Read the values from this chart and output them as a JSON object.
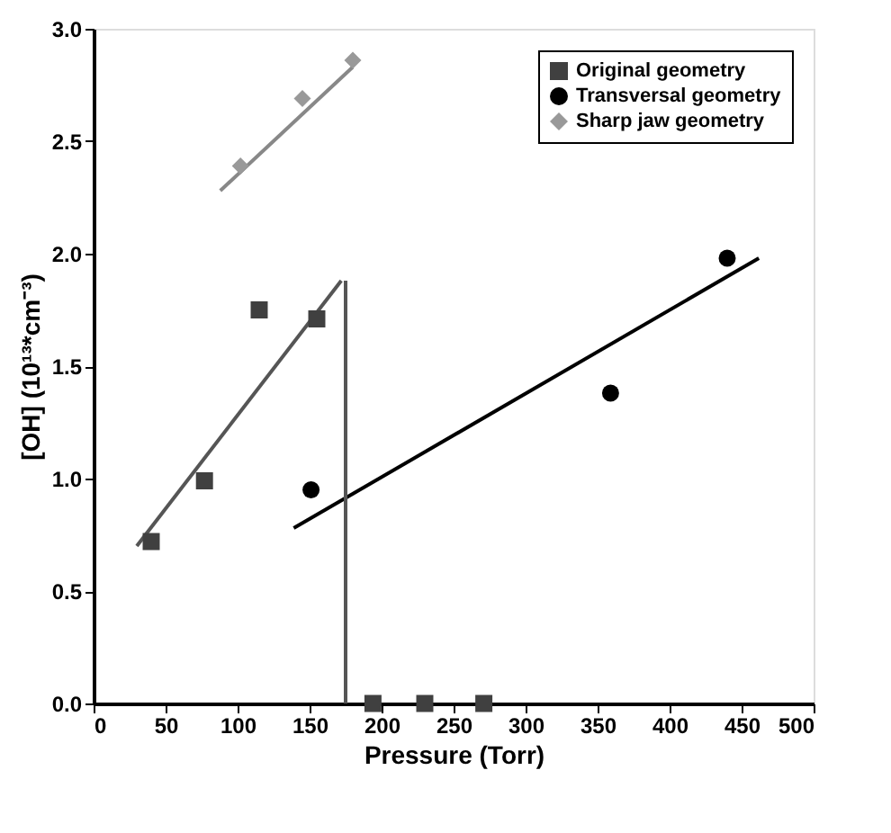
{
  "chart_data": {
    "type": "scatter",
    "xlabel": "Pressure (Torr)",
    "ylabel": "[OH] (10¹³*cm⁻³)",
    "xlim": [
      0,
      500
    ],
    "xticks": [
      0,
      50,
      100,
      150,
      200,
      250,
      300,
      350,
      400,
      450,
      500
    ],
    "ylim": [
      0,
      3
    ],
    "yticks": [
      {
        "value": 0,
        "label": "0.0"
      },
      0.5,
      {
        "value": 1,
        "label": "1.0"
      },
      1.5,
      {
        "value": 2,
        "label": "2.0"
      },
      2.5,
      {
        "value": 3,
        "label": "3.0"
      }
    ],
    "grid": false,
    "legend": "top right",
    "series": [
      {
        "name": "Original geometry",
        "marker": "square",
        "color": "#404040",
        "x": [
          40,
          77,
          115,
          155,
          194,
          230,
          271
        ],
        "values": [
          0.72,
          0.99,
          1.75,
          1.71,
          0,
          0,
          0
        ]
      },
      {
        "name": "Transversal geometry",
        "marker": "circle",
        "color": "#000000",
        "x": [
          151,
          359,
          440
        ],
        "values": [
          0.95,
          1.38,
          1.98
        ]
      },
      {
        "name": "Sharp jaw geometry",
        "marker": "diamond",
        "color": "#999999",
        "x": [
          102,
          145,
          180
        ],
        "values": [
          2.39,
          2.69,
          2.86
        ]
      },
      {
        "type": "line",
        "color": "#555555",
        "x": [
          30,
          172
        ],
        "values": [
          0.7,
          1.88
        ]
      },
      {
        "type": "line",
        "color": "#000000",
        "x": [
          139,
          462
        ],
        "values": [
          0.78,
          1.98
        ]
      },
      {
        "type": "line",
        "color": "#888888",
        "x": [
          88,
          180
        ],
        "values": [
          2.28,
          2.83
        ]
      },
      {
        "type": "line",
        "color": "#555555",
        "x": [
          175,
          175
        ],
        "values": [
          0,
          1.88
        ]
      }
    ]
  }
}
